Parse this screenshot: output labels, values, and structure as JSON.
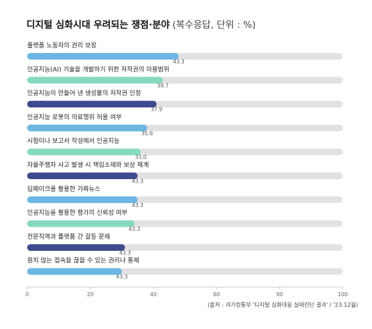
{
  "title": {
    "main": "디지털 심화시대 우려되는 쟁점·분야",
    "sub": "(복수응답, 단위 : %)"
  },
  "source": "(출처 : 과기정통부 '디지털 심화대응 실태진단 결과' / '23.12월)",
  "colors": {
    "light_blue": "#6cb6e3",
    "mint": "#86d9bf",
    "navy": "#3d4a8e",
    "track": "#e2e2e4"
  },
  "chart_data": {
    "type": "bar",
    "orientation": "horizontal",
    "title": "디지털 심화시대 우려되는 쟁점·분야",
    "unit": "%",
    "xlim": [
      0,
      100
    ],
    "xticks": [
      0,
      20,
      40,
      60,
      80,
      100
    ],
    "categories": [
      "플랫폼 노동자의 권리 보장",
      "인공지능(AI) 기술을 개발하기 위한 저작권의 이용범위",
      "인공지능이 만들어 낸 생성물의 저작권 인정",
      "인공지능 로봇의 의료행위 허용 여부",
      "시험이나 보고서 작성에서 인공지능",
      "자율주행차 사고 발생 시 책임소재와 보상 체계",
      "딥페이크를 활용한 가짜뉴스",
      "인공지능을 활용한 평가의 신뢰성 여부",
      "전문직역과 플랫폼 간 갈등 문제",
      "원치 않는 접속을 끊을 수 있는 권리나 통제"
    ],
    "values": [
      43.3,
      39.7,
      37.9,
      35.6,
      33.0,
      43.3,
      43.3,
      43.3,
      43.3,
      43.3
    ],
    "value_labels": [
      "43.3",
      "39.7",
      "37.9",
      "35.6",
      "33.0",
      "43.3",
      "43.3",
      "43.3",
      "43.3",
      "43.3"
    ],
    "bar_fill_levels": [
      0.48,
      0.43,
      0.41,
      0.38,
      0.36,
      0.35,
      0.35,
      0.34,
      0.31,
      0.3
    ],
    "bar_colors": [
      "light_blue",
      "mint",
      "navy",
      "light_blue",
      "mint",
      "navy",
      "light_blue",
      "mint",
      "navy",
      "light_blue"
    ],
    "grid": false,
    "legend": "none"
  }
}
